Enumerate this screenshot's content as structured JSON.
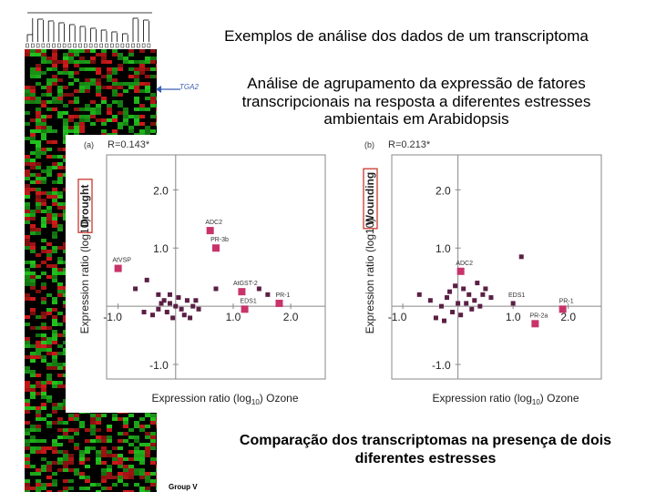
{
  "slide": {
    "title": "Exemplos de análise dos dados de um transcriptoma",
    "subtitle": "Análise de agrupamento da expressão de fatores transcripcionais na resposta a diferentes estresses ambientais em Arabidopsis",
    "caption": "Comparação dos transcriptomas na presença de dois diferentes estresses"
  },
  "heatmap": {
    "gene_label": "TGA2",
    "group_label": "Group V",
    "colors": {
      "up": "#22c81e",
      "down": "#d41a1a",
      "neutral": "#000000"
    }
  },
  "colors": {
    "marker": "#c8336a",
    "marker_dark": "#5b1f45",
    "axis": "#888888",
    "frame": "#c9392e"
  },
  "chart_data": [
    {
      "type": "scatter",
      "panel_label": "(a)",
      "annotation": "R=0.143*",
      "xlabel_main": "Expression ratio (log",
      "xlabel_sub": "10",
      "xlabel_tail": ")",
      "xlabel_stress": "Ozone",
      "ylabel": "Expression ratio (log10)",
      "stress_label": "Drought",
      "xlim": [
        -1.2,
        2.6
      ],
      "ylim": [
        -1.25,
        2.6
      ],
      "x_ticks": [
        -1.0,
        1.0,
        2.0
      ],
      "y_ticks": [
        2.0,
        1.0,
        -1.0
      ],
      "labeled_points": [
        {
          "label": "ADC2",
          "x": 0.6,
          "y": 1.3,
          "big": true
        },
        {
          "label": "PR-3b",
          "x": 0.7,
          "y": 1.0,
          "big": true
        },
        {
          "label": "AtVSP",
          "x": -1.0,
          "y": 0.65,
          "big": true
        },
        {
          "label": "AtGST-2",
          "x": 1.15,
          "y": 0.25,
          "big": true
        },
        {
          "label": "EDS1",
          "x": 1.2,
          "y": -0.05,
          "big": true
        },
        {
          "label": "PR-1",
          "x": 1.8,
          "y": 0.05,
          "big": true
        }
      ],
      "points": [
        {
          "x": -0.7,
          "y": 0.3
        },
        {
          "x": -0.5,
          "y": 0.45
        },
        {
          "x": -0.3,
          "y": 0.2
        },
        {
          "x": -0.2,
          "y": 0.1
        },
        {
          "x": -0.1,
          "y": 0.05
        },
        {
          "x": 0.0,
          "y": 0.0
        },
        {
          "x": -0.15,
          "y": -0.1
        },
        {
          "x": 0.1,
          "y": -0.05
        },
        {
          "x": 0.2,
          "y": 0.1
        },
        {
          "x": 0.3,
          "y": 0.0
        },
        {
          "x": 0.4,
          "y": -0.05
        },
        {
          "x": -0.3,
          "y": -0.05
        },
        {
          "x": -0.4,
          "y": -0.15
        },
        {
          "x": -0.05,
          "y": -0.2
        },
        {
          "x": 0.05,
          "y": 0.15
        },
        {
          "x": -0.25,
          "y": 0.05
        },
        {
          "x": 0.7,
          "y": 0.3
        },
        {
          "x": 1.6,
          "y": 0.2
        },
        {
          "x": -0.55,
          "y": -0.1
        },
        {
          "x": 0.15,
          "y": -0.15
        },
        {
          "x": -0.1,
          "y": 0.2
        },
        {
          "x": 0.35,
          "y": 0.1
        },
        {
          "x": 1.45,
          "y": 0.3
        },
        {
          "x": 0.25,
          "y": -0.2
        }
      ]
    },
    {
      "type": "scatter",
      "panel_label": "(b)",
      "annotation": "R=0.213*",
      "xlabel_main": "Expression ratio (log",
      "xlabel_sub": "10",
      "xlabel_tail": ")",
      "xlabel_stress": "Ozone",
      "ylabel": "Expression ratio (log10)",
      "stress_label": "Wounding",
      "xlim": [
        -1.2,
        2.6
      ],
      "ylim": [
        -1.25,
        2.6
      ],
      "x_ticks": [
        -1.0,
        1.0,
        2.0
      ],
      "y_ticks": [
        2.0,
        1.0,
        -1.0
      ],
      "labeled_points": [
        {
          "label": "ADC2",
          "x": 0.05,
          "y": 0.6,
          "big": true
        },
        {
          "label": "EDS1",
          "x": 1.0,
          "y": 0.05,
          "big": false
        },
        {
          "label": "PR-1",
          "x": 1.9,
          "y": -0.05,
          "big": true
        },
        {
          "label": "PR-2a",
          "x": 1.4,
          "y": -0.3,
          "big": true
        }
      ],
      "points": [
        {
          "x": -0.7,
          "y": 0.2
        },
        {
          "x": -0.5,
          "y": 0.1
        },
        {
          "x": -0.3,
          "y": 0.0
        },
        {
          "x": -0.2,
          "y": 0.15
        },
        {
          "x": -0.1,
          "y": -0.1
        },
        {
          "x": 0.0,
          "y": 0.05
        },
        {
          "x": 0.1,
          "y": 0.3
        },
        {
          "x": 0.2,
          "y": 0.2
        },
        {
          "x": 0.3,
          "y": 0.1
        },
        {
          "x": 0.4,
          "y": 0.0
        },
        {
          "x": 0.5,
          "y": 0.3
        },
        {
          "x": 0.6,
          "y": 0.15
        },
        {
          "x": -0.4,
          "y": -0.2
        },
        {
          "x": 0.05,
          "y": -0.15
        },
        {
          "x": 0.25,
          "y": -0.05
        },
        {
          "x": -0.15,
          "y": 0.25
        },
        {
          "x": 0.35,
          "y": 0.4
        },
        {
          "x": 1.15,
          "y": 0.85
        },
        {
          "x": -0.25,
          "y": -0.25
        },
        {
          "x": 0.15,
          "y": 0.05
        },
        {
          "x": 0.45,
          "y": 0.2
        },
        {
          "x": -0.05,
          "y": 0.35
        }
      ]
    }
  ]
}
